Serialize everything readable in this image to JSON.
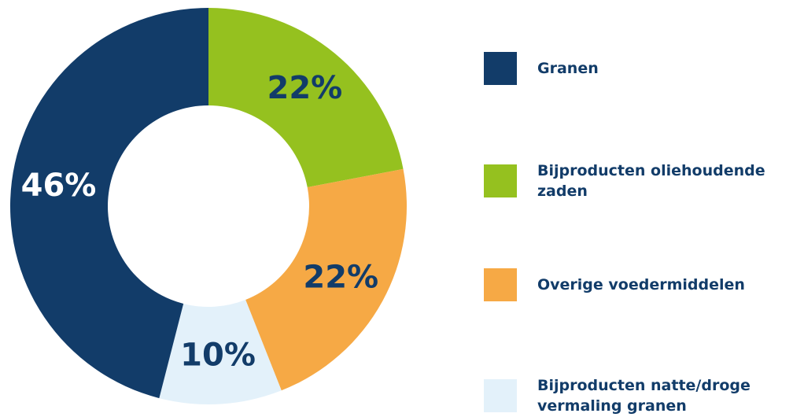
{
  "chart_data": {
    "type": "donut",
    "categories": [
      "Granen",
      "Bijproducten oliehoudende zaden",
      "Overige voedermiddelen",
      "Bijproducten natte/droge vermaling granen"
    ],
    "values": [
      46,
      22,
      22,
      10
    ],
    "value_labels": [
      "46%",
      "22%",
      "22%",
      "10%"
    ],
    "colors": [
      "#123c69",
      "#95c11f",
      "#f6a945",
      "#e3f1fa"
    ],
    "legend": "right"
  }
}
